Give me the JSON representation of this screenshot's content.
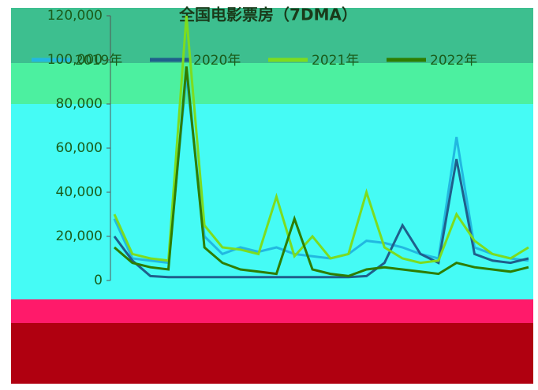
{
  "chart_data": {
    "type": "line",
    "title": "全国电影票房（7DMA）",
    "categories": [
      null,
      null,
      null,
      null,
      null,
      null,
      null,
      null,
      null,
      null,
      null,
      null,
      null,
      null,
      null,
      null,
      null,
      null,
      null,
      null,
      null,
      null,
      null,
      null
    ],
    "series": [
      {
        "name": "2019年",
        "color": "#22b8e0",
        "values": [
          28000,
          10000,
          9000,
          8000,
          93000,
          20000,
          12000,
          15000,
          13000,
          15000,
          12000,
          11000,
          10000,
          12000,
          18000,
          17000,
          15000,
          12000,
          10000,
          65000,
          15000,
          12000,
          10000,
          9000
        ]
      },
      {
        "name": "2020年",
        "color": "#1f5f8b",
        "values": [
          20000,
          9000,
          2000,
          1500,
          1500,
          1500,
          1500,
          1500,
          1500,
          1500,
          1500,
          1500,
          1500,
          1500,
          2000,
          8000,
          25000,
          12000,
          8000,
          55000,
          12000,
          9000,
          8000,
          10000
        ]
      },
      {
        "name": "2021年",
        "color": "#7ddc1f",
        "values": [
          30000,
          12000,
          10000,
          9000,
          120000,
          25000,
          15000,
          14000,
          12000,
          38000,
          11000,
          20000,
          10000,
          12000,
          40000,
          15000,
          10000,
          8000,
          9000,
          30000,
          18000,
          12000,
          10000,
          15000
        ]
      },
      {
        "name": "2022年",
        "color": "#2e7d00",
        "values": [
          15000,
          8000,
          6000,
          5000,
          97000,
          15000,
          8000,
          5000,
          4000,
          3000,
          28000,
          5000,
          3000,
          2000,
          5000,
          6000,
          5000,
          4000,
          3000,
          8000,
          6000,
          5000,
          4000,
          6000
        ]
      }
    ],
    "ylim": [
      0,
      120000
    ],
    "yticks": [
      0,
      {
        "value": 20000,
        "label": "20,000"
      },
      {
        "value": 40000,
        "label": "40,000"
      },
      {
        "value": 60000,
        "label": "60,000"
      },
      {
        "value": 80000,
        "label": "80,000"
      },
      {
        "value": 100000,
        "label": "100,000"
      },
      {
        "value": 120000,
        "label": "120,000"
      }
    ]
  }
}
